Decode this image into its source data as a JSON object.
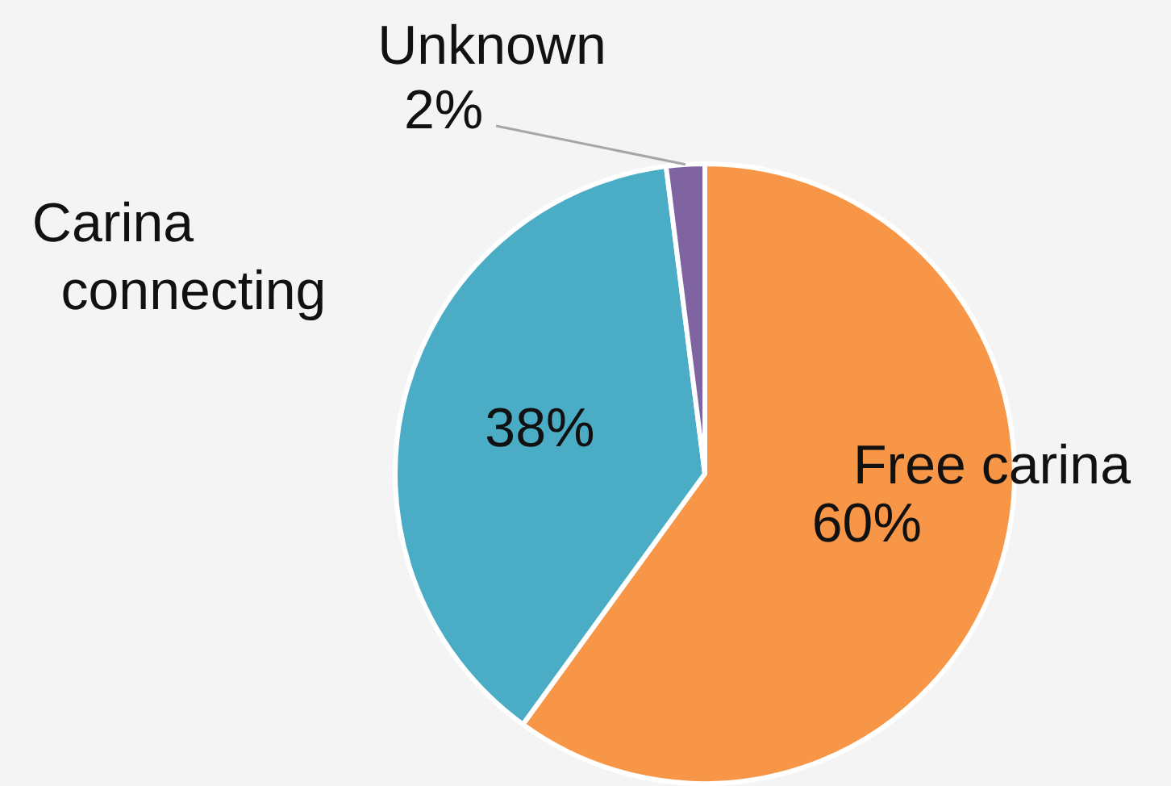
{
  "chart_data": {
    "type": "pie",
    "categories": [
      "Free carina",
      "Carina connecting",
      "Unknown"
    ],
    "values": [
      60,
      38,
      2
    ],
    "colors": [
      "#f79646",
      "#4bacc6",
      "#8064a2"
    ],
    "value_labels": [
      "60%",
      "38%",
      "2%"
    ],
    "legend": false
  }
}
